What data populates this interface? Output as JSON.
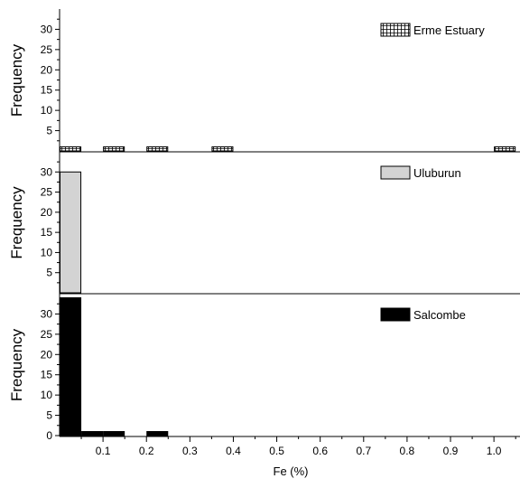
{
  "chart_data": {
    "type": "bar",
    "layout": "three stacked histogram panels sharing x axis",
    "xlabel": "Fe (%)",
    "xlim": [
      0.0,
      1.06
    ],
    "bin_width": 0.05,
    "x_ticks": [
      0.1,
      0.2,
      0.3,
      0.4,
      0.5,
      0.6,
      0.7,
      0.8,
      0.9,
      1.0
    ],
    "x_tick_labels": [
      "0.1",
      "0.2",
      "0.3",
      "0.4",
      "0.5",
      "0.6",
      "0.7",
      "0.8",
      "0.9",
      "1.0"
    ],
    "legend_position": "top-right",
    "panels": [
      {
        "ylabel": "Frequency",
        "ylim": [
          0,
          35
        ],
        "y_ticks": [
          5,
          10,
          15,
          20,
          25,
          30
        ],
        "y_tick_labels": [
          "5",
          "10",
          "15",
          "20",
          "25",
          "30"
        ],
        "series": [
          {
            "name": "Erme Estuary",
            "fill": "hatched",
            "color": "#000000",
            "bins": [
              {
                "x0": 0.0,
                "x1": 0.05,
                "value": 1
              },
              {
                "x0": 0.1,
                "x1": 0.15,
                "value": 1
              },
              {
                "x0": 0.2,
                "x1": 0.25,
                "value": 1
              },
              {
                "x0": 0.35,
                "x1": 0.4,
                "value": 1
              },
              {
                "x0": 1.0,
                "x1": 1.05,
                "value": 1
              }
            ]
          }
        ]
      },
      {
        "ylabel": "Frequency",
        "ylim": [
          0,
          35
        ],
        "y_ticks": [
          5,
          10,
          15,
          20,
          25,
          30
        ],
        "y_tick_labels": [
          "5",
          "10",
          "15",
          "20",
          "25",
          "30"
        ],
        "series": [
          {
            "name": "Uluburun",
            "fill": "solid",
            "color": "#d3d3d3",
            "bins": [
              {
                "x0": 0.0,
                "x1": 0.05,
                "value": 30
              }
            ]
          }
        ]
      },
      {
        "ylabel": "Frequency",
        "ylim": [
          0,
          35
        ],
        "y_ticks": [
          0,
          5,
          10,
          15,
          20,
          25,
          30
        ],
        "y_tick_labels": [
          "0",
          "5",
          "10",
          "15",
          "20",
          "25",
          "30"
        ],
        "series": [
          {
            "name": "Salcombe",
            "fill": "solid",
            "color": "#000000",
            "bins": [
              {
                "x0": 0.0,
                "x1": 0.05,
                "value": 34
              },
              {
                "x0": 0.05,
                "x1": 0.1,
                "value": 1
              },
              {
                "x0": 0.1,
                "x1": 0.15,
                "value": 1
              },
              {
                "x0": 0.2,
                "x1": 0.25,
                "value": 1
              }
            ]
          }
        ]
      }
    ]
  }
}
